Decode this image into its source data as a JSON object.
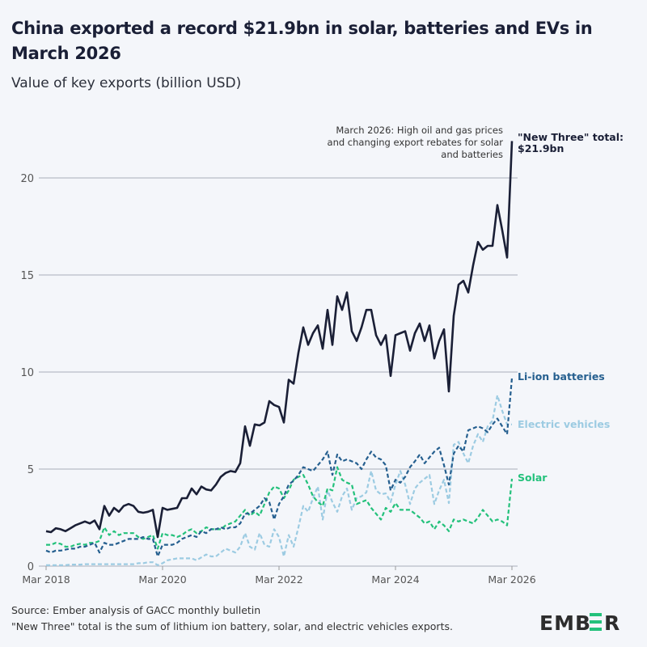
{
  "title": "China exported a record $21.9bn in solar, batteries and EVs in March 2026",
  "subtitle": "Value of key exports (billion USD)",
  "annotation": "March 2026: High oil and gas prices and changing export rebates for solar and batteries",
  "end_labels": {
    "total": "\"New Three\" total: $21.9bn",
    "batteries": "Li-ion batteries",
    "ev": "Electric vehicles",
    "solar": "Solar"
  },
  "footer": {
    "source": "Source: Ember analysis of GACC monthly bulletin",
    "note": "\"New Three\" total is the sum of lithium ion battery, solar, and electric vehicles exports."
  },
  "logo": "EMBER",
  "colors": {
    "total": "#1a1f36",
    "batteries": "#255f8f",
    "ev": "#9ccbe2",
    "solar": "#23c17b",
    "grid": "#b8bcc8",
    "logo_accent": "#23c17b"
  },
  "chart_data": {
    "type": "line",
    "x_start": "Mar 2018",
    "x_end": "Mar 2026",
    "frequency": "monthly",
    "x_ticks": [
      "Mar 2018",
      "Mar 2020",
      "Mar 2022",
      "Mar 2024",
      "Mar 2026"
    ],
    "y_ticks": [
      0,
      5,
      10,
      15,
      20
    ],
    "ylim": [
      0,
      22
    ],
    "grid": "horizontal",
    "series": [
      {
        "name": "\"New Three\" total",
        "key": "total",
        "style": "solid",
        "values": [
          1.8,
          1.75,
          1.95,
          1.9,
          1.8,
          1.95,
          2.1,
          2.2,
          2.3,
          2.2,
          2.35,
          1.9,
          3.1,
          2.6,
          3.0,
          2.8,
          3.1,
          3.2,
          3.1,
          2.8,
          2.75,
          2.8,
          2.9,
          1.5,
          3.0,
          2.9,
          2.95,
          3.0,
          3.5,
          3.5,
          4.0,
          3.7,
          4.1,
          3.95,
          3.9,
          4.2,
          4.6,
          4.8,
          4.9,
          4.85,
          5.3,
          7.2,
          6.2,
          7.3,
          7.25,
          7.4,
          8.5,
          8.3,
          8.2,
          7.4,
          9.6,
          9.4,
          11.0,
          12.3,
          11.4,
          12.0,
          12.4,
          11.2,
          13.2,
          11.4,
          13.9,
          13.2,
          14.1,
          12.1,
          11.6,
          12.3,
          13.2,
          13.2,
          11.9,
          11.4,
          11.9,
          9.8,
          11.9,
          12.0,
          12.1,
          11.1,
          12.0,
          12.5,
          11.6,
          12.4,
          10.7,
          11.6,
          12.2,
          9.0,
          12.9,
          14.5,
          14.7,
          14.1,
          15.5,
          16.7,
          16.3,
          16.5,
          16.5,
          18.6,
          17.3,
          15.9,
          21.9
        ]
      },
      {
        "name": "Li-ion batteries",
        "key": "batteries",
        "style": "dashed",
        "values": [
          0.8,
          0.7,
          0.8,
          0.8,
          0.85,
          0.9,
          0.9,
          1.0,
          1.0,
          1.1,
          1.2,
          0.7,
          1.2,
          1.1,
          1.1,
          1.2,
          1.3,
          1.4,
          1.4,
          1.4,
          1.5,
          1.4,
          1.4,
          0.5,
          1.1,
          1.1,
          1.1,
          1.2,
          1.4,
          1.5,
          1.6,
          1.5,
          1.8,
          1.7,
          1.9,
          1.9,
          2.0,
          1.9,
          2.0,
          2.0,
          2.2,
          2.7,
          2.7,
          2.9,
          3.1,
          3.5,
          3.3,
          2.4,
          3.2,
          3.6,
          4.2,
          4.4,
          4.7,
          5.1,
          5.0,
          4.9,
          5.2,
          5.5,
          5.9,
          4.7,
          5.75,
          5.4,
          5.5,
          5.4,
          5.3,
          5.0,
          5.5,
          5.9,
          5.6,
          5.5,
          5.2,
          3.9,
          4.45,
          4.3,
          4.6,
          5.1,
          5.4,
          5.75,
          5.3,
          5.6,
          5.9,
          6.1,
          5.2,
          4.2,
          5.8,
          6.2,
          5.9,
          7.0,
          7.1,
          7.2,
          7.1,
          6.9,
          7.3,
          7.6,
          7.2,
          6.8,
          9.7
        ]
      },
      {
        "name": "Electric vehicles",
        "key": "ev",
        "style": "dashed",
        "values": [
          0.05,
          0.05,
          0.05,
          0.05,
          0.05,
          0.08,
          0.08,
          0.08,
          0.1,
          0.1,
          0.1,
          0.1,
          0.1,
          0.1,
          0.1,
          0.1,
          0.1,
          0.1,
          0.1,
          0.15,
          0.15,
          0.2,
          0.2,
          0.05,
          0.15,
          0.3,
          0.35,
          0.4,
          0.4,
          0.4,
          0.4,
          0.3,
          0.45,
          0.6,
          0.5,
          0.5,
          0.7,
          0.9,
          0.8,
          0.7,
          1.0,
          1.7,
          1.0,
          0.85,
          1.7,
          1.1,
          1.0,
          1.9,
          1.5,
          0.5,
          1.6,
          1.0,
          2.0,
          3.1,
          2.8,
          3.5,
          4.1,
          2.4,
          3.9,
          3.3,
          2.8,
          3.6,
          4.0,
          2.9,
          3.5,
          3.6,
          3.8,
          4.9,
          3.9,
          3.7,
          3.75,
          3.3,
          4.2,
          4.9,
          4.2,
          3.2,
          4.0,
          4.3,
          4.5,
          4.7,
          3.2,
          3.9,
          4.45,
          3.25,
          6.25,
          6.4,
          5.8,
          5.3,
          6.2,
          6.8,
          6.4,
          7.2,
          7.5,
          8.8,
          8.0,
          7.3,
          7.3
        ]
      },
      {
        "name": "Solar",
        "key": "solar",
        "style": "dashed",
        "values": [
          1.1,
          1.1,
          1.2,
          1.15,
          1.0,
          1.0,
          1.1,
          1.15,
          1.1,
          1.2,
          1.2,
          1.3,
          2.0,
          1.6,
          1.8,
          1.6,
          1.7,
          1.7,
          1.7,
          1.5,
          1.4,
          1.5,
          1.6,
          0.9,
          1.7,
          1.6,
          1.6,
          1.5,
          1.6,
          1.8,
          1.9,
          1.7,
          1.8,
          2.0,
          1.9,
          1.9,
          1.9,
          2.1,
          2.2,
          2.3,
          2.6,
          2.9,
          2.6,
          2.8,
          2.6,
          3.2,
          3.8,
          4.1,
          4.0,
          3.5,
          3.9,
          4.45,
          4.6,
          4.7,
          4.2,
          3.6,
          3.3,
          3.1,
          4.0,
          3.9,
          5.1,
          4.45,
          4.3,
          4.2,
          3.2,
          3.3,
          3.4,
          3.0,
          2.7,
          2.4,
          3.0,
          2.8,
          3.25,
          2.9,
          2.9,
          2.9,
          2.7,
          2.5,
          2.2,
          2.3,
          1.9,
          2.3,
          2.1,
          1.8,
          2.4,
          2.3,
          2.4,
          2.3,
          2.2,
          2.5,
          2.9,
          2.6,
          2.3,
          2.4,
          2.3,
          2.1,
          4.5
        ]
      }
    ]
  }
}
